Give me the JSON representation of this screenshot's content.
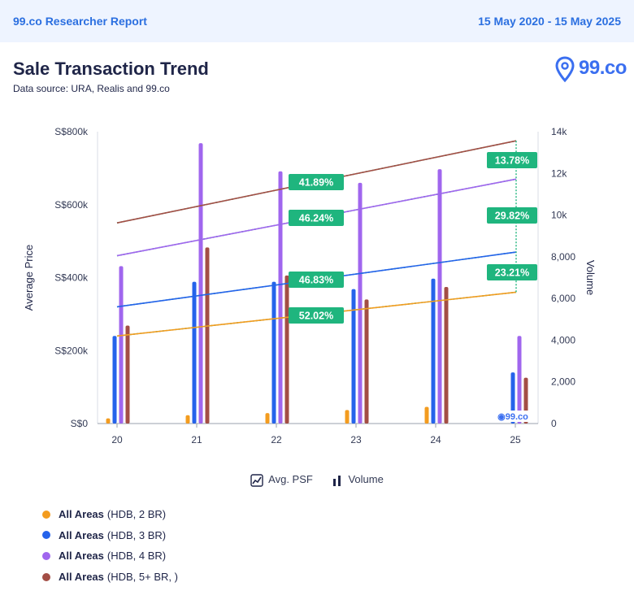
{
  "header": {
    "brand": "99.co Researcher Report",
    "date_range": "15 May 2020 - 15 May 2025"
  },
  "report": {
    "title": "Sale Transaction Trend",
    "source": "Data source: URA, Realis and 99.co",
    "logo_text": "99.co"
  },
  "colors": {
    "hdb_2br": "#f39c1f",
    "hdb_3br": "#2563eb",
    "hdb_4br": "#a066ee",
    "hdb_5br": "#a34e45",
    "label_bg": "#1fb57e",
    "trend_dots": "#1fb57e"
  },
  "legend": {
    "avg_psf": "Avg. PSF",
    "volume": "Volume"
  },
  "series_legend": [
    {
      "name": "All Areas",
      "detail": "(HDB, 2 BR)",
      "color": "#f39c1f"
    },
    {
      "name": "All Areas",
      "detail": "(HDB, 3 BR)",
      "color": "#2563eb"
    },
    {
      "name": "All Areas",
      "detail": "(HDB, 4 BR)",
      "color": "#a066ee"
    },
    {
      "name": "All Areas",
      "detail": "(HDB, 5+ BR, )",
      "color": "#a34e45"
    }
  ],
  "chart_data": {
    "type": "bar",
    "categories": [
      "20",
      "21",
      "22",
      "23",
      "24",
      "25"
    ],
    "xlabel": "",
    "y_left_label": "Average Price",
    "y_right_label": "Volume",
    "y_left_ticks": [
      "S$0",
      "S$200k",
      "S$400k",
      "S$600k",
      "S$800k"
    ],
    "y_right_ticks": [
      "0",
      "2,000",
      "4,000",
      "6,000",
      "8,000",
      "10k",
      "12k",
      "14k"
    ],
    "y_left_lim": [
      0,
      800000
    ],
    "y_right_lim": [
      0,
      14000
    ],
    "volume_series": [
      {
        "name": "HDB, 2 BR",
        "color": "#f39c1f",
        "values": [
          250,
          400,
          500,
          650,
          800,
          0
        ]
      },
      {
        "name": "HDB, 3 BR",
        "color": "#2563eb",
        "values": [
          4200,
          6800,
          6800,
          6450,
          6950,
          2450
        ]
      },
      {
        "name": "HDB, 4 BR",
        "color": "#a066ee",
        "values": [
          7550,
          13450,
          12100,
          11550,
          12200,
          4200
        ]
      },
      {
        "name": "HDB, 5+ BR",
        "color": "#a34e45",
        "values": [
          4700,
          8450,
          7100,
          5950,
          6550,
          2200
        ]
      }
    ],
    "price_series": [
      {
        "name": "HDB, 2 BR",
        "color": "#f39c1f",
        "start": 240000,
        "end": 360000
      },
      {
        "name": "HDB, 3 BR",
        "color": "#2563eb",
        "start": 320000,
        "end": 470000
      },
      {
        "name": "HDB, 4 BR",
        "color": "#a066ee",
        "start": 460000,
        "end": 670000
      },
      {
        "name": "HDB, 5+ BR",
        "color": "#a34e45",
        "start": 550000,
        "end": 775000
      }
    ],
    "trend_labels": [
      "52.02%",
      "46.83%",
      "46.24%",
      "41.89%"
    ],
    "end_labels": [
      "23.21%",
      "29.82%",
      "13.78%"
    ],
    "watermark": "99.co"
  }
}
